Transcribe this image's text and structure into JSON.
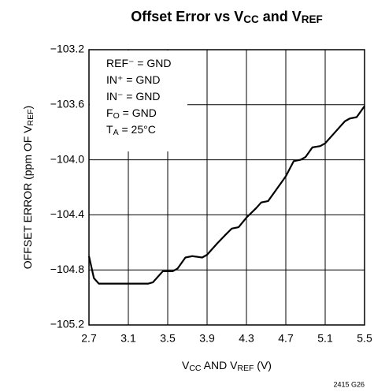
{
  "chart_data": {
    "type": "line",
    "title": [
      "Offset Error vs V",
      "CC",
      " and V",
      "REF"
    ],
    "x_label": [
      "V",
      "CC",
      "  AND V",
      "REF",
      " (V)"
    ],
    "y_label": [
      "OFFSET ERROR (ppm OF V",
      "REF",
      ")"
    ],
    "annotations": [
      [
        "REF⁻ = GND"
      ],
      [
        "IN⁺ = GND"
      ],
      [
        "IN⁻ = GND"
      ],
      [
        "F",
        "O",
        " = GND"
      ],
      [
        "T",
        "A",
        " = 25°C"
      ]
    ],
    "footnote": "2415 G26",
    "grid": true,
    "xlim": [
      2.7,
      5.5
    ],
    "ylim": [
      -105.2,
      -103.2
    ],
    "xticks": [
      2.7,
      3.1,
      3.5,
      3.9,
      4.3,
      4.7,
      5.1,
      5.5
    ],
    "yticks": [
      {
        "value": -105.2,
        "label": "−105.2"
      },
      {
        "value": -104.8,
        "label": "−104.8"
      },
      {
        "value": -104.4,
        "label": "−104.4"
      },
      {
        "value": -104.0,
        "label": "−104.0"
      },
      {
        "value": -103.6,
        "label": "−103.6"
      },
      {
        "value": -103.2,
        "label": "−103.2"
      }
    ],
    "x": [
      2.7,
      2.75,
      2.8,
      2.9,
      3.0,
      3.1,
      3.2,
      3.3,
      3.35,
      3.45,
      3.55,
      3.6,
      3.68,
      3.75,
      3.85,
      3.9,
      4.0,
      4.08,
      4.15,
      4.22,
      4.3,
      4.4,
      4.45,
      4.52,
      4.6,
      4.7,
      4.78,
      4.85,
      4.9,
      4.97,
      5.05,
      5.1,
      5.2,
      5.3,
      5.35,
      5.42,
      5.5
    ],
    "series": [
      {
        "color": "#000000",
        "values": [
          -104.7,
          -104.86,
          -104.9,
          -104.9,
          -104.9,
          -104.9,
          -104.9,
          -104.9,
          -104.89,
          -104.81,
          -104.81,
          -104.79,
          -104.71,
          -104.7,
          -104.71,
          -104.69,
          -104.61,
          -104.55,
          -104.5,
          -104.49,
          -104.42,
          -104.35,
          -104.31,
          -104.3,
          -104.22,
          -104.12,
          -104.01,
          -104.0,
          -103.98,
          -103.91,
          -103.9,
          -103.88,
          -103.8,
          -103.72,
          -103.7,
          -103.69,
          -103.61
        ]
      }
    ]
  }
}
